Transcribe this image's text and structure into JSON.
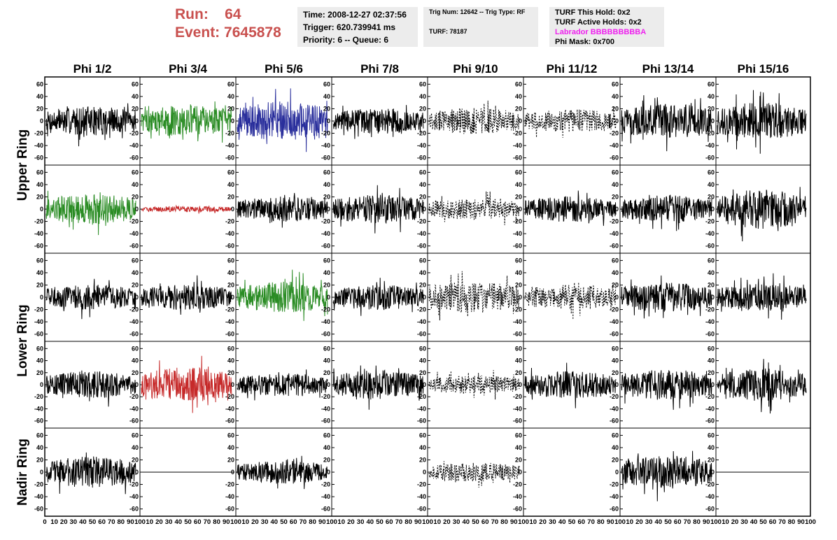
{
  "header": {
    "run_label": "Run:",
    "run_value": "64",
    "event_label": "Event:",
    "event_value": "7645878"
  },
  "info_time": {
    "time": "Time: 2008-12-27 02:37:56",
    "trigger": "Trigger: 620.739941 ms",
    "priority": "Priority: 6 -- Queue: 6"
  },
  "info_trig": {
    "trig": "Trig Num: 12642 -- Trig Type: RF",
    "turf": "TURF: 78187"
  },
  "info_turf": {
    "this_hold": "TURF This Hold: 0x2",
    "active_holds": "TURF Active Holds: 0x2",
    "labrador": "Labrador BBBBBBBBBA",
    "phi_mask": "Phi Mask: 0x700"
  },
  "columns": [
    "Phi 1/2",
    "Phi 3/4",
    "Phi 5/6",
    "Phi 7/8",
    "Phi 9/10",
    "Phi 11/12",
    "Phi 13/14",
    "Phi 15/16"
  ],
  "rows": [
    {
      "label": "Upper Ring",
      "span": [
        0,
        1
      ]
    },
    {
      "label": "Lower Ring",
      "span": [
        2,
        3
      ]
    },
    {
      "label": "Nadir Ring",
      "span": [
        4,
        4
      ]
    }
  ],
  "colors": {
    "run_text": "#c9514f",
    "labrador_text": "#ee22ee",
    "info_bg": "#ececec",
    "trace_black": "#000000",
    "trace_green": "#2a8c24",
    "trace_blue": "#2a2f9c",
    "trace_red": "#c62a2a"
  },
  "chart_data": {
    "type": "line",
    "grid": false,
    "ylim": [
      -65,
      65
    ],
    "xlim": [
      0,
      100
    ],
    "yticks": [
      "60",
      "40",
      "20",
      "0",
      "-20",
      "-40",
      "-60"
    ],
    "x_ticks_first": [
      "0",
      "10",
      "20",
      "30",
      "40",
      "50",
      "60",
      "70",
      "80",
      "90",
      "100"
    ],
    "x_ticks_other": [
      "10",
      "20",
      "30",
      "40",
      "50",
      "60",
      "70",
      "80",
      "90",
      "100"
    ],
    "panels": [
      [
        {
          "color": "black",
          "style": "solid",
          "amp": 15
        },
        {
          "color": "green",
          "style": "solid",
          "amp": 16
        },
        {
          "color": "blue",
          "style": "solid",
          "amp": 20
        },
        {
          "color": "black",
          "style": "solid",
          "amp": 13
        },
        {
          "color": "black",
          "style": "dashed",
          "amp": 14
        },
        {
          "color": "black",
          "style": "dashed",
          "amp": 12
        },
        {
          "color": "black",
          "style": "solid",
          "amp": 18
        },
        {
          "color": "black",
          "style": "solid",
          "amp": 19
        }
      ],
      [
        {
          "color": "green",
          "style": "solid",
          "amp": 16
        },
        {
          "color": "red",
          "style": "solid",
          "amp": 3
        },
        {
          "color": "black",
          "style": "solid",
          "amp": 13
        },
        {
          "color": "black",
          "style": "solid",
          "amp": 15
        },
        {
          "color": "black",
          "style": "dashed",
          "amp": 11
        },
        {
          "color": "black",
          "style": "solid",
          "amp": 13
        },
        {
          "color": "black",
          "style": "solid",
          "amp": 14
        },
        {
          "color": "black",
          "style": "solid",
          "amp": 20
        }
      ],
      [
        {
          "color": "black",
          "style": "solid",
          "amp": 13
        },
        {
          "color": "black",
          "style": "solid",
          "amp": 13
        },
        {
          "color": "green",
          "style": "solid",
          "amp": 16
        },
        {
          "color": "black",
          "style": "solid",
          "amp": 13
        },
        {
          "color": "black",
          "style": "dashed",
          "amp": 17
        },
        {
          "color": "black",
          "style": "dashed",
          "amp": 13
        },
        {
          "color": "black",
          "style": "solid",
          "amp": 15
        },
        {
          "color": "black",
          "style": "solid",
          "amp": 14
        }
      ],
      [
        {
          "color": "black",
          "style": "solid",
          "amp": 14
        },
        {
          "color": "red",
          "style": "solid",
          "amp": 18
        },
        {
          "color": "black",
          "style": "solid",
          "amp": 12
        },
        {
          "color": "black",
          "style": "solid",
          "amp": 15
        },
        {
          "color": "black",
          "style": "dashed",
          "amp": 10
        },
        {
          "color": "black",
          "style": "solid",
          "amp": 14
        },
        {
          "color": "black",
          "style": "solid",
          "amp": 16
        },
        {
          "color": "black",
          "style": "solid",
          "amp": 17
        }
      ],
      [
        {
          "color": "black",
          "style": "solid",
          "amp": 16
        },
        {
          "color": "black",
          "style": "flat",
          "amp": 0
        },
        {
          "color": "black",
          "style": "solid",
          "amp": 12
        },
        null,
        {
          "color": "black",
          "style": "dashed",
          "amp": 10
        },
        null,
        {
          "color": "black",
          "style": "solid",
          "amp": 17
        },
        {
          "color": "black",
          "style": "flat",
          "amp": 0
        }
      ]
    ]
  }
}
